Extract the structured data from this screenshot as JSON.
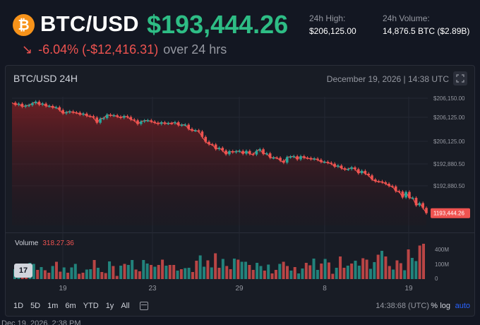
{
  "header": {
    "coin_symbol": "₿",
    "pair": "BTC/USD",
    "price": "$193,444.26",
    "high_label": "24h High:",
    "high_value": "$206,125.00",
    "volume_label": "24h Volume:",
    "volume_value": "14,876.5 BTC ($2.89B)",
    "change_arrow": "↘",
    "change_text": "-6.04% (-$12,416.31)",
    "change_suffix": "over 24 hrs"
  },
  "chart": {
    "title": "BTC/USD 24H",
    "date": "December 19, 2026 | 14:38 UTC",
    "expand_icon": "expand-icon",
    "volume_label": "Volume",
    "volume_value": "318.27.36",
    "tv_logo": "17"
  },
  "chart_data": {
    "type": "candlestick",
    "y_tick_labels": [
      "$206,150.00",
      "$206,125.00",
      "$206,125.00",
      "$192,880.50",
      "$192,880.50"
    ],
    "current_price_label": "1193,444.26",
    "x_tick_labels": [
      "19",
      "23",
      "29",
      "8",
      "19"
    ],
    "volume_tick_labels": [
      "400M",
      "100M",
      "0"
    ],
    "ohlc_series": [
      0.954,
      0.938,
      0.946,
      0.923,
      0.931,
      0.935,
      0.95,
      0.962,
      0.939,
      0.947,
      0.928,
      0.929,
      0.917,
      0.919,
      0.897,
      0.871,
      0.88,
      0.886,
      0.878,
      0.877,
      0.862,
      0.869,
      0.852,
      0.849,
      0.839,
      0.798,
      0.83,
      0.834,
      0.861,
      0.855,
      0.856,
      0.846,
      0.837,
      0.85,
      0.843,
      0.823,
      0.817,
      0.788,
      0.808,
      0.815,
      0.817,
      0.807,
      0.799,
      0.789,
      0.801,
      0.792,
      0.795,
      0.794,
      0.802,
      0.779,
      0.782,
      0.783,
      0.75,
      0.738,
      0.739,
      0.73,
      0.688,
      0.65,
      0.631,
      0.629,
      0.593,
      0.603,
      0.582,
      0.553,
      0.577,
      0.569,
      0.576,
      0.579,
      0.557,
      0.579,
      0.556,
      0.551,
      0.58,
      0.592,
      0.556,
      0.56,
      0.526,
      0.527,
      0.526,
      0.504,
      0.488,
      0.531,
      0.534,
      0.538,
      0.513,
      0.538,
      0.526,
      0.524,
      0.515,
      0.519,
      0.51,
      0.494,
      0.494,
      0.487,
      0.48,
      0.457,
      0.465,
      0.444,
      0.435,
      0.438,
      0.451,
      0.437,
      0.406,
      0.424,
      0.402,
      0.389,
      0.357,
      0.343,
      0.342,
      0.335,
      0.324,
      0.307,
      0.303,
      0.266,
      0.263,
      0.217,
      0.26,
      0.214,
      0.214,
      0.156,
      0.173,
      0.136,
      0.095
    ],
    "volume_series": [
      0.28,
      0.13,
      0.13,
      0.33,
      0.46,
      0.43,
      0.26,
      0.34,
      0.25,
      0.18,
      0.37,
      0.49,
      0.21,
      0.33,
      0.18,
      0.33,
      0.43,
      0.15,
      0.18,
      0.27,
      0.28,
      0.54,
      0.32,
      0.2,
      0.17,
      0.5,
      0.37,
      0.09,
      0.38,
      0.43,
      0.4,
      0.54,
      0.27,
      0.22,
      0.54,
      0.44,
      0.4,
      0.35,
      0.4,
      0.55,
      0.38,
      0.4,
      0.4,
      0.24,
      0.28,
      0.31,
      0.32,
      0.2,
      0.52,
      0.67,
      0.35,
      0.53,
      0.33,
      0.73,
      0.32,
      0.57,
      0.37,
      0.28,
      0.58,
      0.55,
      0.49,
      0.49,
      0.4,
      0.26,
      0.46,
      0.37,
      0.24,
      0.41,
      0.16,
      0.26,
      0.43,
      0.49,
      0.37,
      0.24,
      0.34,
      0.16,
      0.3,
      0.46,
      0.39,
      0.58,
      0.26,
      0.44,
      0.57,
      0.47,
      0.15,
      0.32,
      0.64,
      0.32,
      0.38,
      0.44,
      0.52,
      0.38,
      0.59,
      0.55,
      0.29,
      0.48,
      0.69,
      0.8,
      0.64,
      0.37,
      0.27,
      0.53,
      0.45,
      0.25,
      0.84,
      0.6,
      0.51,
      0.95,
      1.0
    ],
    "up_color": "#26a69a",
    "down_color": "#ef5350",
    "price_tag_color": "#ef5350"
  },
  "timeframes": [
    "1D",
    "5D",
    "1m",
    "6m",
    "YTD",
    "1y",
    "All"
  ],
  "footer": {
    "calendar_icon": "calendar-icon",
    "clock": "14:38:68 (UTC)",
    "percent": "%",
    "log": "log",
    "auto": "auto"
  },
  "bottom_timestamp": "Dec 19, 2026, 2:38 PM"
}
